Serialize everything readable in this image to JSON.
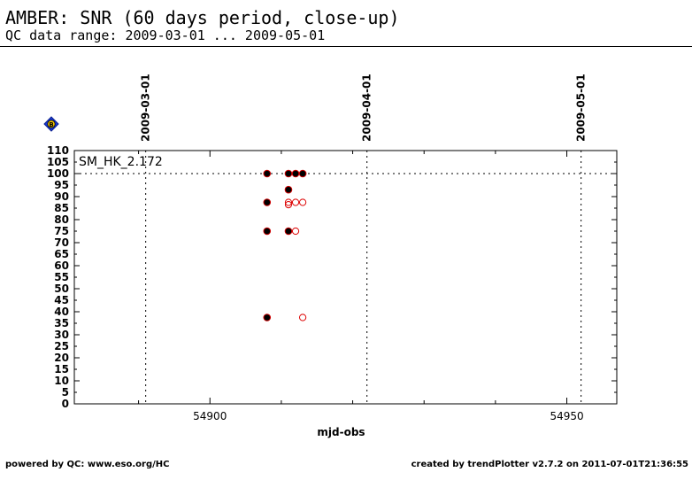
{
  "header": {
    "title": "AMBER: SNR (60 days period, close-up)",
    "subtitle": "QC data range: 2009-03-01 ... 2009-05-01"
  },
  "footer": {
    "left": "powered by QC: www.eso.org/HC",
    "right": "created by trendPlotter v2.7.2 on 2011-07-01T21:36:55"
  },
  "chart_data": {
    "type": "scatter",
    "title": "",
    "xlabel": "mjd-obs",
    "ylabel": "",
    "panel_label": "SM_HK_2.172",
    "xlim": [
      54881.0,
      54957.0
    ],
    "ylim": [
      0,
      110
    ],
    "xticks": [
      54900,
      54950
    ],
    "yticks": [
      0,
      5,
      10,
      15,
      20,
      25,
      30,
      35,
      40,
      45,
      50,
      55,
      60,
      65,
      70,
      75,
      80,
      85,
      90,
      95,
      100,
      105,
      110
    ],
    "reference_line_y": 100,
    "date_markers": [
      {
        "label": "2009-03-01",
        "x": 54891.0
      },
      {
        "label": "2009-04-01",
        "x": 54922.0
      },
      {
        "label": "2009-05-01",
        "x": 54952.0
      }
    ],
    "marker_badge": "B",
    "grid": false,
    "series": [
      {
        "marker": "filled",
        "color": "#000000",
        "edge_color": "#cc0000",
        "points": [
          [
            54908.0,
            100
          ],
          [
            54908.0,
            87.5
          ],
          [
            54908.0,
            75
          ],
          [
            54908.0,
            37.5
          ],
          [
            54911.0,
            100
          ],
          [
            54911.0,
            93
          ],
          [
            54911.0,
            75
          ],
          [
            54912.0,
            100
          ],
          [
            54913.0,
            100
          ]
        ]
      },
      {
        "marker": "open",
        "color": "#dd0000",
        "points": [
          [
            54911.0,
            87.5
          ],
          [
            54911.0,
            86.5
          ],
          [
            54912.0,
            87.5
          ],
          [
            54913.0,
            87.5
          ],
          [
            54912.0,
            75
          ],
          [
            54913.0,
            37.5
          ]
        ]
      }
    ]
  }
}
